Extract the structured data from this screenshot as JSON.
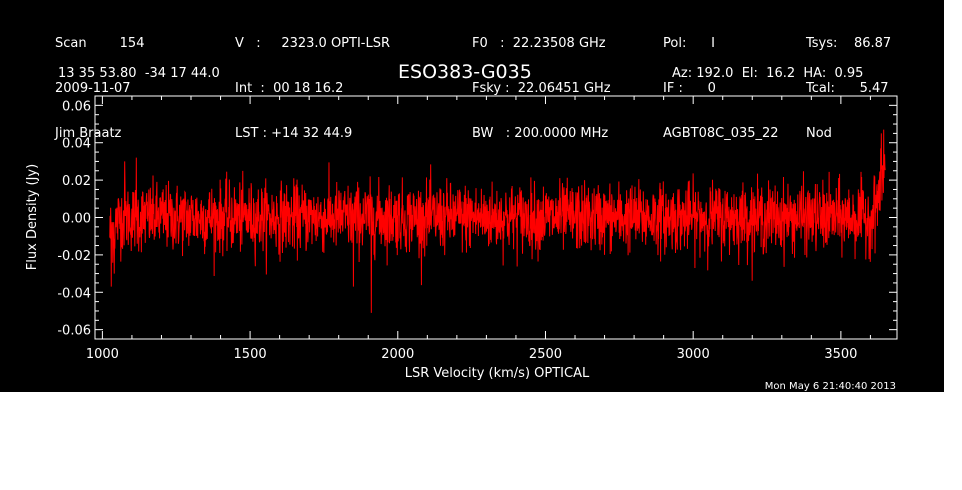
{
  "header": {
    "col1": [
      "Scan        154",
      "2009-11-07",
      "Jim Braatz"
    ],
    "col2": [
      "V   :     2323.0 OPTI-LSR",
      "Int  :  00 18 16.2",
      "LST : +14 32 44.9"
    ],
    "col3": [
      "F0   :  22.23508 GHz",
      "Fsky :  22.06451 GHz",
      "BW   : 200.0000 MHz"
    ],
    "col4": [
      "Pol:      I",
      "IF :      0",
      "AGBT08C_035_22"
    ],
    "col5": [
      "Tsys:    86.87",
      "Tcal:      5.47",
      "Nod"
    ],
    "coords": "13 35 53.80  -34 17 44.0",
    "source": "ESO383-G035",
    "azelha": "Az: 192.0  El:  16.2  HA:  0.95",
    "timestamp": "Mon May  6 21:40:40 2013"
  },
  "colors": {
    "background": "#000000",
    "axes": "#ffffff",
    "trace": "#ff0000"
  },
  "chart_data": {
    "type": "line",
    "xlabel": "LSR Velocity (km/s) OPTICAL",
    "ylabel": "Flux Density (Jy)",
    "xlim": [
      975,
      3690
    ],
    "ylim": [
      -0.065,
      0.065
    ],
    "x_ticks": [
      1000,
      1500,
      2000,
      2500,
      3000,
      3500
    ],
    "x_tick_labels": [
      "1000",
      "1500",
      "2000",
      "2500",
      "3000",
      "3500"
    ],
    "y_ticks": [
      -0.06,
      -0.04,
      -0.02,
      0.0,
      0.02,
      0.04,
      0.06
    ],
    "y_tick_labels": [
      "-0.06",
      "-0.04",
      "-0.02",
      "0.00",
      "0.02",
      "0.04",
      "0.06"
    ],
    "series": [
      {
        "x_start": 1025,
        "x_end": 3650,
        "noise_rms": 0.009,
        "features": [
          {
            "x": 1030,
            "y": -0.037
          },
          {
            "x": 1040,
            "y": -0.03
          },
          {
            "x": 1075,
            "y": 0.03
          },
          {
            "x": 1115,
            "y": 0.032
          },
          {
            "x": 1910,
            "y": -0.051
          },
          {
            "x": 1850,
            "y": -0.037
          },
          {
            "x": 3615,
            "y": 0.022
          },
          {
            "x": 3635,
            "y": 0.037
          },
          {
            "x": 3645,
            "y": 0.047
          }
        ]
      }
    ]
  }
}
